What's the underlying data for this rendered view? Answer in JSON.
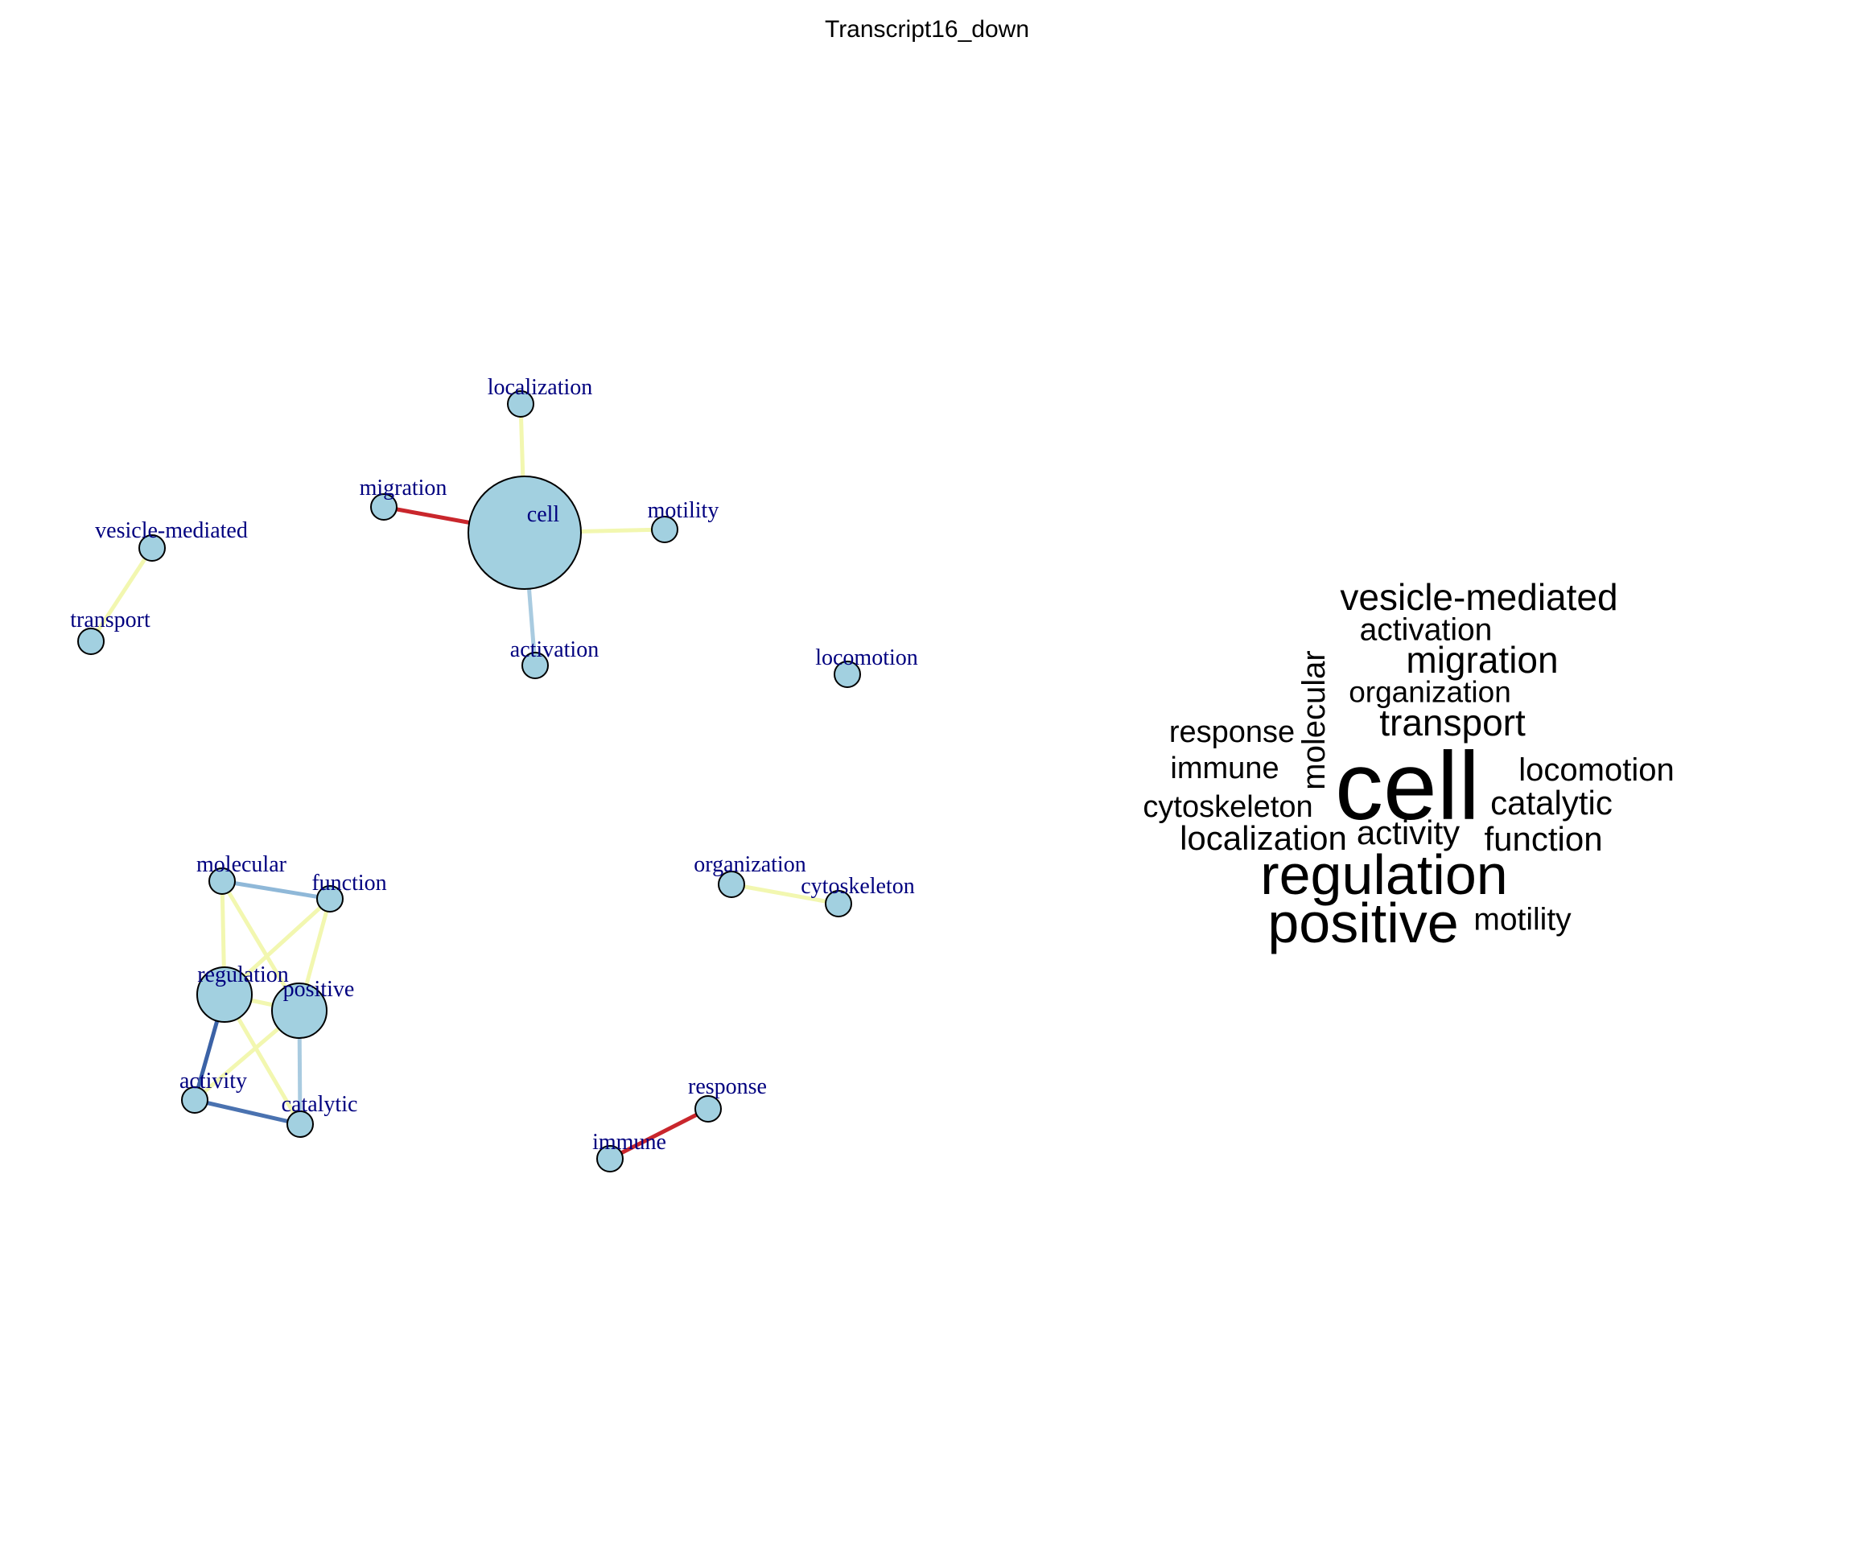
{
  "title": "Transcript16_down",
  "network": {
    "node_fill": "#a2d0e0",
    "label_color": "#00007f",
    "nodes": [
      {
        "id": "cell",
        "label": "cell",
        "size": "large"
      },
      {
        "id": "localization",
        "label": "localization",
        "size": "small"
      },
      {
        "id": "migration",
        "label": "migration",
        "size": "small"
      },
      {
        "id": "motility",
        "label": "motility",
        "size": "small"
      },
      {
        "id": "activation",
        "label": "activation",
        "size": "small"
      },
      {
        "id": "vesicle-mediated",
        "label": "vesicle-mediated",
        "size": "small"
      },
      {
        "id": "transport",
        "label": "transport",
        "size": "small"
      },
      {
        "id": "locomotion",
        "label": "locomotion",
        "size": "small"
      },
      {
        "id": "molecular",
        "label": "molecular",
        "size": "small"
      },
      {
        "id": "function",
        "label": "function",
        "size": "small"
      },
      {
        "id": "regulation",
        "label": "regulation",
        "size": "medium"
      },
      {
        "id": "positive",
        "label": "positive",
        "size": "medium"
      },
      {
        "id": "activity",
        "label": "activity",
        "size": "small"
      },
      {
        "id": "catalytic",
        "label": "catalytic",
        "size": "small"
      },
      {
        "id": "organization",
        "label": "organization",
        "size": "small"
      },
      {
        "id": "cytoskeleton",
        "label": "cytoskeleton",
        "size": "small"
      },
      {
        "id": "response",
        "label": "response",
        "size": "small"
      },
      {
        "id": "immune",
        "label": "immune",
        "size": "small"
      }
    ],
    "edges": [
      {
        "source": "cell",
        "target": "localization",
        "color": "#f2f7b0"
      },
      {
        "source": "cell",
        "target": "migration",
        "color": "#c9262c"
      },
      {
        "source": "cell",
        "target": "motility",
        "color": "#f2f7b0"
      },
      {
        "source": "cell",
        "target": "activation",
        "color": "#a9cbe0"
      },
      {
        "source": "vesicle-mediated",
        "target": "transport",
        "color": "#f2f7b0"
      },
      {
        "source": "molecular",
        "target": "function",
        "color": "#8fb8d8"
      },
      {
        "source": "molecular",
        "target": "regulation",
        "color": "#f2f7b0"
      },
      {
        "source": "molecular",
        "target": "positive",
        "color": "#f2f7b0"
      },
      {
        "source": "function",
        "target": "regulation",
        "color": "#f2f7b0"
      },
      {
        "source": "function",
        "target": "positive",
        "color": "#f2f7b0"
      },
      {
        "source": "regulation",
        "target": "positive",
        "color": "#f2f7b0"
      },
      {
        "source": "regulation",
        "target": "activity",
        "color": "#3b62a6"
      },
      {
        "source": "regulation",
        "target": "catalytic",
        "color": "#f2f7b0"
      },
      {
        "source": "positive",
        "target": "activity",
        "color": "#f2f7b0"
      },
      {
        "source": "positive",
        "target": "catalytic",
        "color": "#a9cbe0"
      },
      {
        "source": "activity",
        "target": "catalytic",
        "color": "#4a72b0"
      },
      {
        "source": "organization",
        "target": "cytoskeleton",
        "color": "#f2f7b0"
      },
      {
        "source": "response",
        "target": "immune",
        "color": "#c9262c"
      }
    ]
  },
  "wordcloud": [
    {
      "id": "vesicle-mediated",
      "text": "vesicle-mediated",
      "weight": "medium-large",
      "vertical": false
    },
    {
      "id": "activation",
      "text": "activation",
      "weight": "medium",
      "vertical": false
    },
    {
      "id": "migration",
      "text": "migration",
      "weight": "medium-large",
      "vertical": false
    },
    {
      "id": "organization",
      "text": "organization",
      "weight": "medium",
      "vertical": false
    },
    {
      "id": "transport",
      "text": "transport",
      "weight": "medium-large",
      "vertical": false
    },
    {
      "id": "molecular",
      "text": "molecular",
      "weight": "medium",
      "vertical": true
    },
    {
      "id": "response",
      "text": "response",
      "weight": "medium",
      "vertical": false
    },
    {
      "id": "immune",
      "text": "immune",
      "weight": "medium",
      "vertical": false
    },
    {
      "id": "cell",
      "text": "cell",
      "weight": "largest",
      "vertical": false
    },
    {
      "id": "locomotion",
      "text": "locomotion",
      "weight": "medium",
      "vertical": false
    },
    {
      "id": "cytoskeleton",
      "text": "cytoskeleton",
      "weight": "medium",
      "vertical": false
    },
    {
      "id": "catalytic",
      "text": "catalytic",
      "weight": "medium",
      "vertical": false
    },
    {
      "id": "activity",
      "text": "activity",
      "weight": "medium",
      "vertical": false
    },
    {
      "id": "localization",
      "text": "localization",
      "weight": "medium",
      "vertical": false
    },
    {
      "id": "function",
      "text": "function",
      "weight": "medium",
      "vertical": false
    },
    {
      "id": "regulation",
      "text": "regulation",
      "weight": "large",
      "vertical": false
    },
    {
      "id": "positive",
      "text": "positive",
      "weight": "large",
      "vertical": false
    },
    {
      "id": "motility",
      "text": "motility",
      "weight": "medium",
      "vertical": false
    }
  ]
}
